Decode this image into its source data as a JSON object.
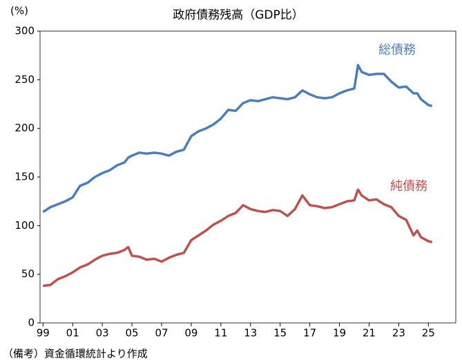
{
  "chart_data": {
    "type": "line",
    "title": "政府債務残高（GDP比）",
    "y_label": "(%)",
    "note": "（備考）資金循環統計より作成",
    "x": [
      1999,
      1999.5,
      2000,
      2000.5,
      2001,
      2001.5,
      2002,
      2002.5,
      2003,
      2003.5,
      2004,
      2004.5,
      2004.75,
      2005,
      2005.5,
      2006,
      2006.5,
      2007,
      2007.5,
      2008,
      2008.5,
      2009,
      2009.5,
      2010,
      2010.5,
      2011,
      2011.5,
      2012,
      2012.5,
      2013,
      2013.5,
      2014,
      2014.5,
      2015,
      2015.5,
      2016,
      2016.5,
      2017,
      2017.5,
      2018,
      2018.5,
      2019,
      2019.5,
      2020,
      2020.25,
      2020.5,
      2021,
      2021.5,
      2022,
      2022.5,
      2023,
      2023.5,
      2024,
      2024.25,
      2024.5,
      2025,
      2025.25
    ],
    "series": [
      {
        "name": "総債務",
        "color": "#4a7ebb",
        "values": [
          114,
          119,
          122,
          125,
          129,
          141,
          144,
          150,
          154,
          157,
          162,
          165,
          170,
          172,
          175,
          174,
          175,
          174,
          172,
          176,
          178,
          192,
          197,
          200,
          204,
          210,
          219,
          218,
          226,
          229,
          228,
          230,
          232,
          231,
          230,
          232,
          239,
          235,
          232,
          231,
          232,
          236,
          239,
          241,
          265,
          258,
          255,
          256,
          256,
          248,
          242,
          243,
          236,
          236,
          230,
          224,
          223
        ]
      },
      {
        "name": "純債務",
        "color": "#c0504d",
        "values": [
          38,
          39,
          45,
          48,
          52,
          57,
          60,
          65,
          69,
          71,
          72,
          75,
          78,
          69,
          68,
          65,
          66,
          63,
          67,
          70,
          72,
          85,
          90,
          95,
          101,
          105,
          110,
          113,
          121,
          117,
          115,
          114,
          116,
          115,
          110,
          117,
          131,
          121,
          120,
          118,
          119,
          122,
          125,
          126,
          137,
          131,
          126,
          127,
          122,
          119,
          110,
          106,
          90,
          95,
          88,
          84,
          83
        ]
      }
    ],
    "xlim": [
      1998.8,
      2026.85
    ],
    "xticks": [
      {
        "value": 1999,
        "label": "99"
      },
      {
        "value": 2001,
        "label": "01"
      },
      {
        "value": 2003,
        "label": "03"
      },
      {
        "value": 2005,
        "label": "05"
      },
      {
        "value": 2007,
        "label": "07"
      },
      {
        "value": 2009,
        "label": "09"
      },
      {
        "value": 2011,
        "label": "11"
      },
      {
        "value": 2013,
        "label": "13"
      },
      {
        "value": 2015,
        "label": "15"
      },
      {
        "value": 2017,
        "label": "17"
      },
      {
        "value": 2019,
        "label": "19"
      },
      {
        "value": 2021,
        "label": "21"
      },
      {
        "value": 2023,
        "label": "23"
      },
      {
        "value": 2025,
        "label": "25"
      }
    ],
    "ylim": [
      0,
      300
    ],
    "yticks": [
      0,
      50,
      100,
      150,
      200,
      250,
      300
    ]
  }
}
